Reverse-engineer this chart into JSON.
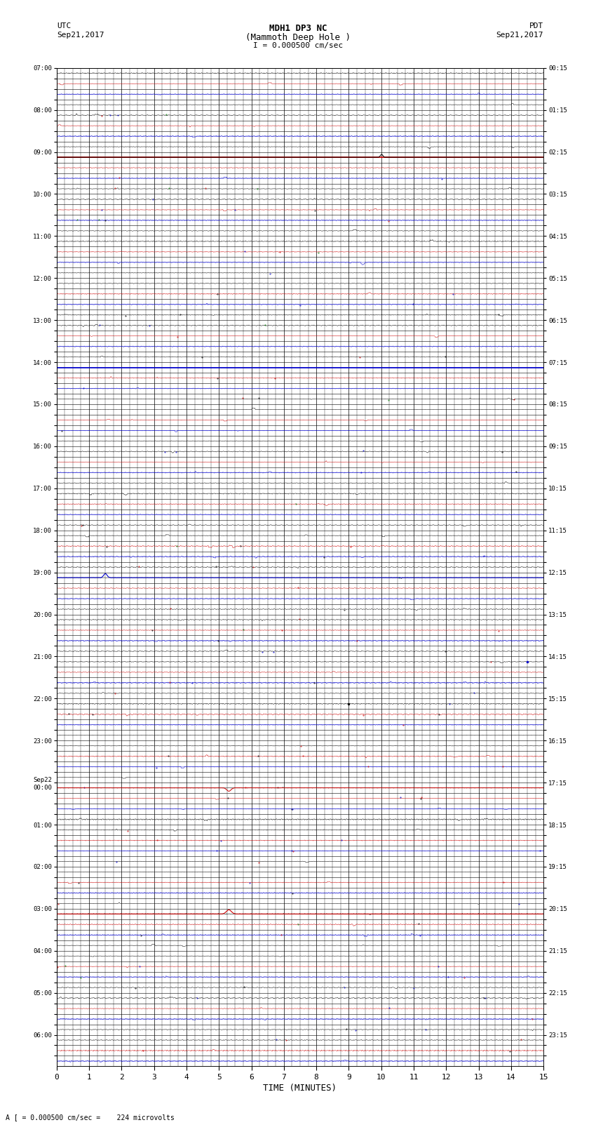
{
  "title_line1": "MDH1 DP3 NC",
  "title_line2": "(Mammoth Deep Hole )",
  "title_line3": "I = 0.000500 cm/sec",
  "left_label_line1": "UTC",
  "left_label_line2": "Sep21,2017",
  "right_label_line1": "PDT",
  "right_label_line2": "Sep21,2017",
  "bottom_label": "TIME (MINUTES)",
  "footnote": "A [ = 0.000500 cm/sec =    224 microvolts",
  "xlabel_ticks": [
    0,
    1,
    2,
    3,
    4,
    5,
    6,
    7,
    8,
    9,
    10,
    11,
    12,
    13,
    14,
    15
  ],
  "left_time_labels": [
    "07:00",
    "",
    "",
    "",
    "08:00",
    "",
    "",
    "",
    "09:00",
    "",
    "",
    "",
    "10:00",
    "",
    "",
    "",
    "11:00",
    "",
    "",
    "",
    "12:00",
    "",
    "",
    "",
    "13:00",
    "",
    "",
    "",
    "14:00",
    "",
    "",
    "",
    "15:00",
    "",
    "",
    "",
    "16:00",
    "",
    "",
    "",
    "17:00",
    "",
    "",
    "",
    "18:00",
    "",
    "",
    "",
    "19:00",
    "",
    "",
    "",
    "20:00",
    "",
    "",
    "",
    "21:00",
    "",
    "",
    "",
    "22:00",
    "",
    "",
    "",
    "23:00",
    "",
    "",
    "",
    "Sep22\n00:00",
    "",
    "",
    "",
    "01:00",
    "",
    "",
    "",
    "02:00",
    "",
    "",
    "",
    "03:00",
    "",
    "",
    "",
    "04:00",
    "",
    "",
    "",
    "05:00",
    "",
    "",
    "",
    "06:00",
    "",
    ""
  ],
  "right_time_labels": [
    "00:15",
    "",
    "",
    "",
    "01:15",
    "",
    "",
    "",
    "02:15",
    "",
    "",
    "",
    "03:15",
    "",
    "",
    "",
    "04:15",
    "",
    "",
    "",
    "05:15",
    "",
    "",
    "",
    "06:15",
    "",
    "",
    "",
    "07:15",
    "",
    "",
    "",
    "08:15",
    "",
    "",
    "",
    "09:15",
    "",
    "",
    "",
    "10:15",
    "",
    "",
    "",
    "11:15",
    "",
    "",
    "",
    "12:15",
    "",
    "",
    "",
    "13:15",
    "",
    "",
    "",
    "14:15",
    "",
    "",
    "",
    "15:15",
    "",
    "",
    "",
    "16:15",
    "",
    "",
    "",
    "17:15",
    "",
    "",
    "",
    "18:15",
    "",
    "",
    "",
    "19:15",
    "",
    "",
    "",
    "20:15",
    "",
    "",
    "",
    "21:15",
    "",
    "",
    "",
    "22:15",
    "",
    "",
    "",
    "23:15",
    "",
    ""
  ],
  "n_rows": 95,
  "n_minutes": 15,
  "background_color": "#ffffff",
  "grid_color": "#000000",
  "trace_color_black": "#000000",
  "trace_color_blue": "#0000cc",
  "trace_color_red": "#cc0000",
  "trace_color_green": "#007700",
  "noise_amplitude": 0.06,
  "red_line_row": 8,
  "blue_line_row": 28
}
